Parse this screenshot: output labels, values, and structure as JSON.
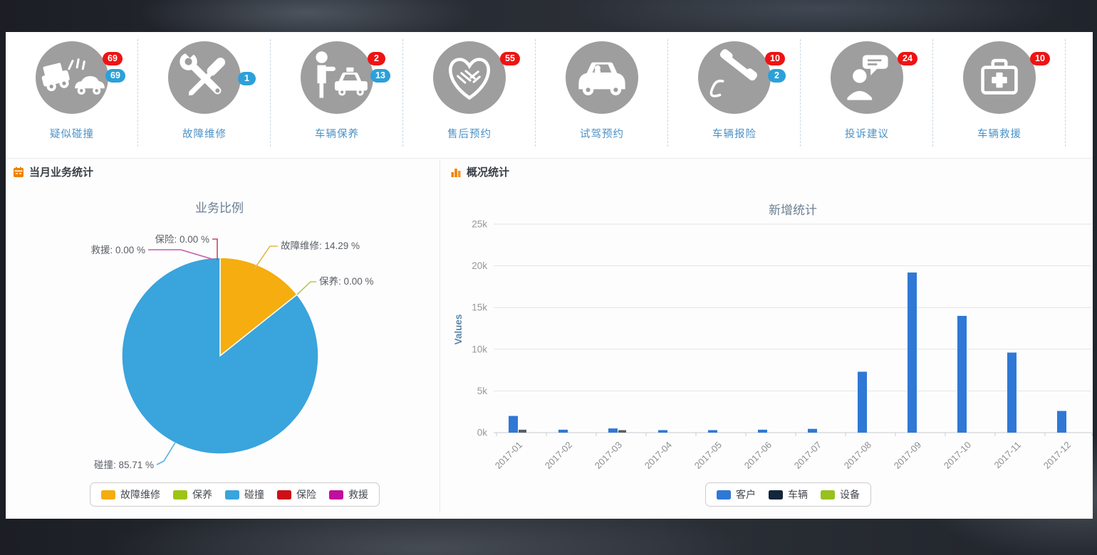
{
  "quick_actions": {
    "badge_colors": {
      "red": "#ee1313",
      "blue": "#2da0d9"
    },
    "items": [
      {
        "label": "疑似碰撞",
        "icon": "car-crash-icon",
        "badges": [
          {
            "type": "red",
            "value": "69"
          },
          {
            "type": "blue",
            "value": "69"
          }
        ]
      },
      {
        "label": "故障维修",
        "icon": "repair-tools-icon",
        "badges": [
          {
            "type": "blue",
            "value": "1"
          }
        ]
      },
      {
        "label": "车辆保养",
        "icon": "hail-taxi-icon",
        "badges": [
          {
            "type": "red",
            "value": "2"
          },
          {
            "type": "blue",
            "value": "13"
          }
        ]
      },
      {
        "label": "售后预约",
        "icon": "handshake-heart-icon",
        "badges": [
          {
            "type": "red",
            "value": "55"
          }
        ]
      },
      {
        "label": "试驾预约",
        "icon": "test-drive-car-icon",
        "badges": []
      },
      {
        "label": "车辆报险",
        "icon": "phone-handset-icon",
        "badges": [
          {
            "type": "red",
            "value": "10"
          },
          {
            "type": "blue",
            "value": "2"
          }
        ]
      },
      {
        "label": "投诉建议",
        "icon": "feedback-person-icon",
        "badges": [
          {
            "type": "red",
            "value": "24"
          }
        ]
      },
      {
        "label": "车辆救援",
        "icon": "first-aid-kit-icon",
        "badges": [
          {
            "type": "red",
            "value": "10"
          }
        ]
      }
    ]
  },
  "left_panel": {
    "title": "当月业务统计",
    "header_icon": "calendar-icon"
  },
  "right_panel": {
    "title": "概况统计",
    "header_icon": "mini-bar-chart-icon"
  },
  "chart_data": [
    {
      "type": "pie",
      "title": "业务比例",
      "legend_position": "bottom",
      "slices": [
        {
          "label": "故障维修",
          "value_pct": 14.29,
          "color": "#f5ad0f",
          "callout": "故障维修: 14.29 %"
        },
        {
          "label": "保养",
          "value_pct": 0.0,
          "color": "#9ec417",
          "callout": "保养: 0.00 %"
        },
        {
          "label": "碰撞",
          "value_pct": 85.71,
          "color": "#3aa4dc",
          "callout": "碰撞: 85.71 %"
        },
        {
          "label": "保险",
          "value_pct": 0.0,
          "color": "#cc1016",
          "callout": "保险: 0.00 %"
        },
        {
          "label": "救援",
          "value_pct": 0.0,
          "color": "#bf0f9b",
          "callout": "救援: 0.00 %"
        }
      ],
      "legend": [
        "故障维修",
        "保养",
        "碰撞",
        "保险",
        "救援"
      ]
    },
    {
      "type": "bar",
      "title": "新增统计",
      "ylabel": "Values",
      "legend_position": "bottom",
      "categories": [
        "2017-01",
        "2017-02",
        "2017-03",
        "2017-04",
        "2017-05",
        "2017-06",
        "2017-07",
        "2017-08",
        "2017-09",
        "2017-10",
        "2017-11",
        "2017-12"
      ],
      "ylim": [
        0,
        25000
      ],
      "yticks": [
        "0k",
        "5k",
        "10k",
        "15k",
        "20k",
        "25k"
      ],
      "grid": true,
      "series": [
        {
          "name": "客户",
          "color": "#2f78d5",
          "values": [
            2000,
            350,
            500,
            300,
            300,
            350,
            450,
            7300,
            19200,
            14000,
            9600,
            2600
          ]
        },
        {
          "name": "车辆",
          "color": "#13263a",
          "values": [
            350,
            0,
            300,
            0,
            0,
            0,
            0,
            0,
            0,
            0,
            0,
            0
          ]
        },
        {
          "name": "设备",
          "color": "#96c11f",
          "values": [
            0,
            0,
            0,
            0,
            0,
            0,
            0,
            0,
            0,
            0,
            0,
            0
          ]
        }
      ]
    }
  ]
}
